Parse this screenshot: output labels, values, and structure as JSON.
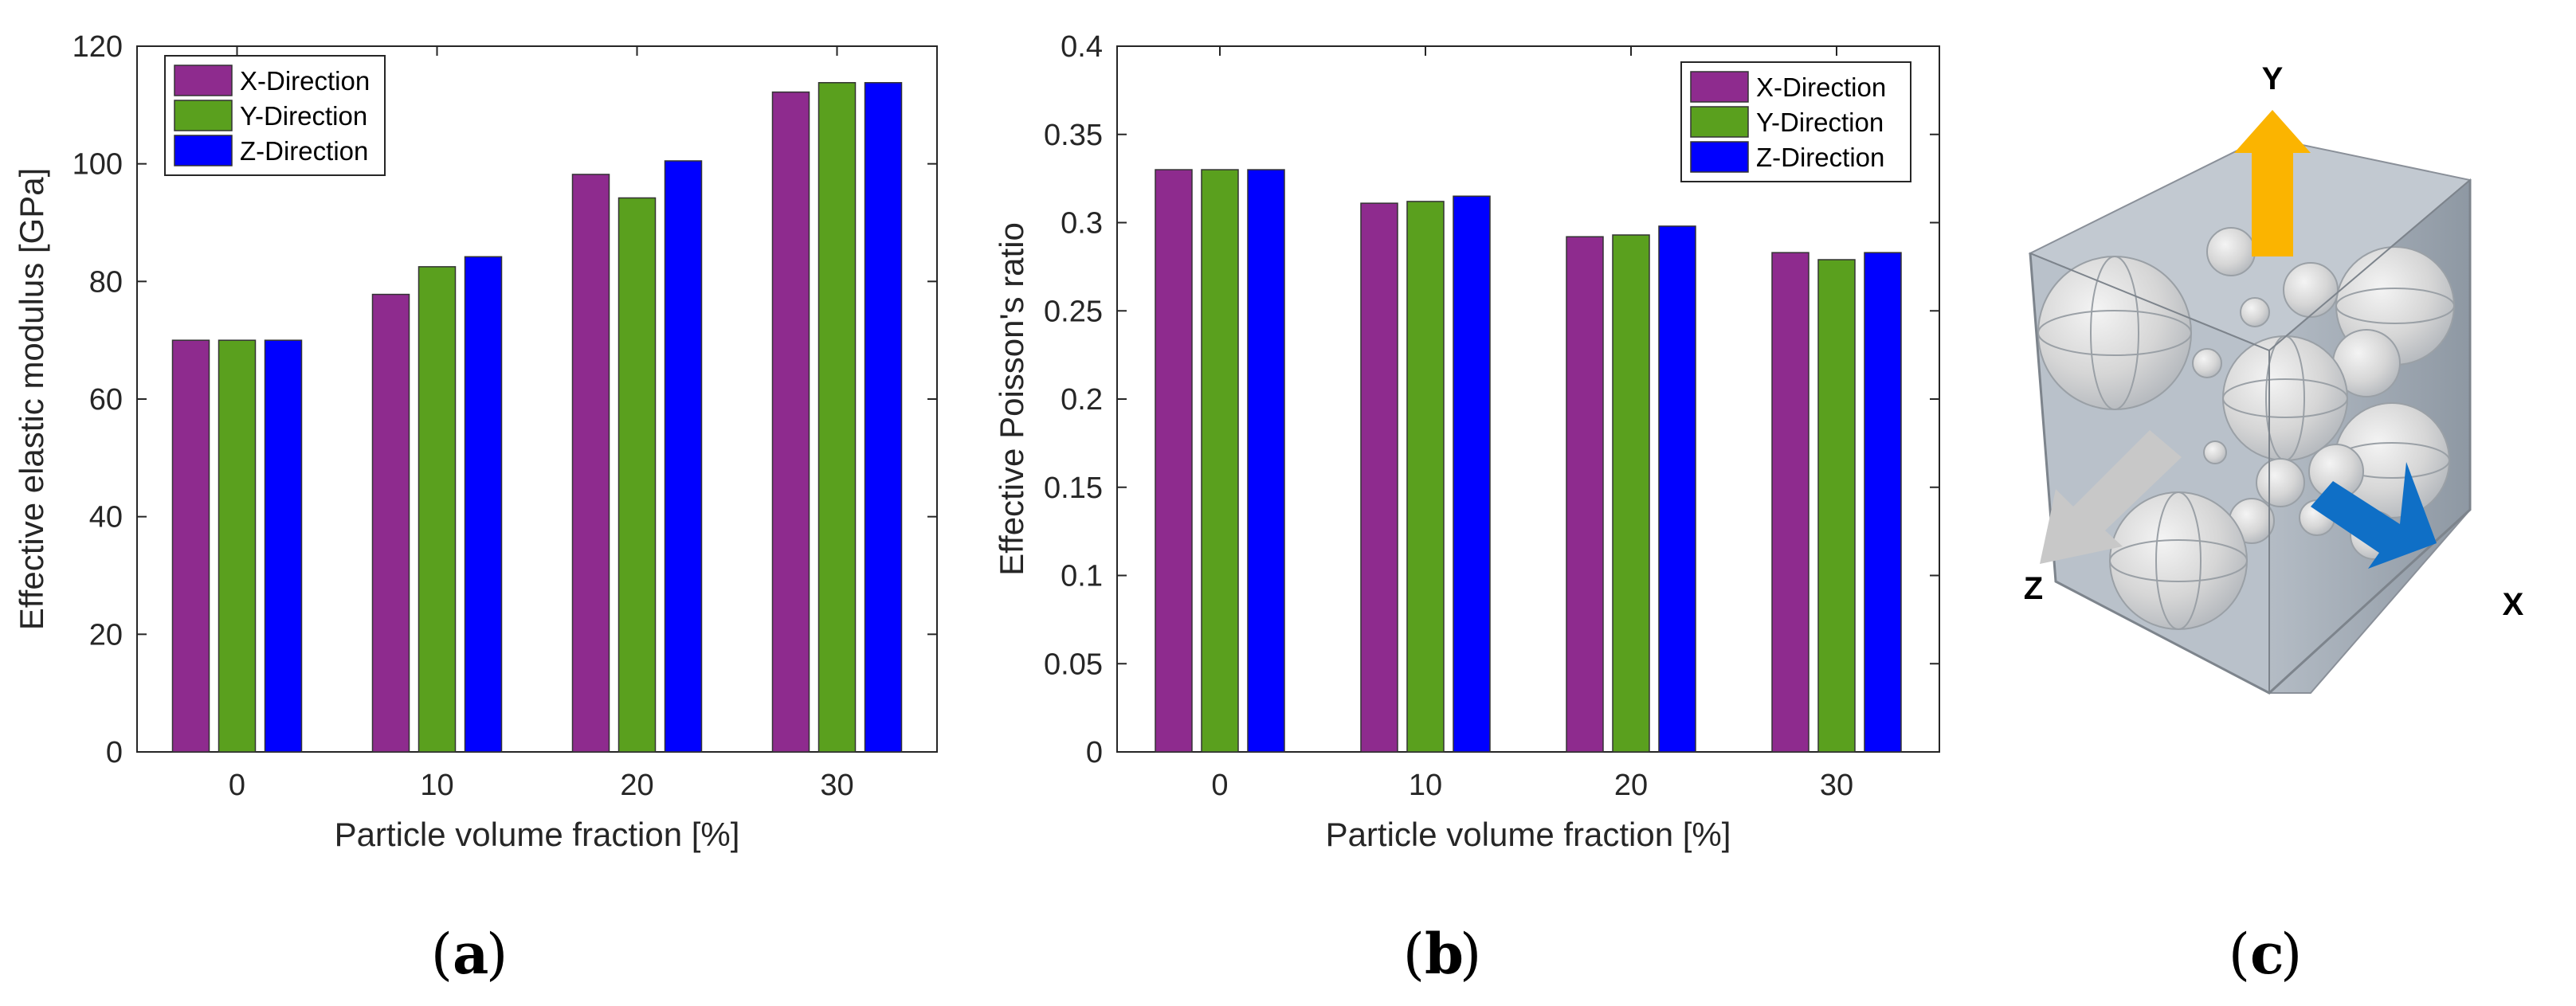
{
  "chart_data": [
    {
      "type": "bar",
      "panel": "a",
      "categories": [
        "0",
        "10",
        "20",
        "30"
      ],
      "series": [
        {
          "name": "X-Direction",
          "color": "#8e2b8e",
          "values": [
            70,
            77.8,
            98.2,
            112.2
          ]
        },
        {
          "name": "Y-Direction",
          "color": "#5aa01e",
          "values": [
            70,
            82.5,
            94.2,
            113.8
          ]
        },
        {
          "name": "Z-Direction",
          "color": "#0000ff",
          "values": [
            70,
            84.2,
            100.5,
            113.8
          ]
        }
      ],
      "xlabel": "Particle volume fraction [%]",
      "ylabel": "Effective elastic modulus [GPa]",
      "ylim": [
        0,
        120
      ],
      "yticks": [
        "0",
        "20",
        "40",
        "60",
        "80",
        "100",
        "120"
      ],
      "legend": "top-left"
    },
    {
      "type": "bar",
      "panel": "b",
      "categories": [
        "0",
        "10",
        "20",
        "30"
      ],
      "series": [
        {
          "name": "X-Direction",
          "color": "#8e2b8e",
          "values": [
            0.33,
            0.311,
            0.292,
            0.283
          ]
        },
        {
          "name": "Y-Direction",
          "color": "#5aa01e",
          "values": [
            0.33,
            0.312,
            0.293,
            0.279
          ]
        },
        {
          "name": "Z-Direction",
          "color": "#0000ff",
          "values": [
            0.33,
            0.315,
            0.298,
            0.283
          ]
        }
      ],
      "xlabel": "Particle volume fraction [%]",
      "ylabel": "Effective Poisson's ratio",
      "ylim": [
        0,
        0.4
      ],
      "yticks": [
        "0",
        "0.05",
        "0.1",
        "0.15",
        "0.2",
        "0.25",
        "0.3",
        "0.35",
        "0.4"
      ],
      "legend": "top-right"
    }
  ],
  "panel_labels": {
    "a": "a",
    "b": "b",
    "c": "c"
  },
  "cube": {
    "axes": [
      {
        "label": "Y",
        "color": "#fbb400"
      },
      {
        "label": "X",
        "color": "#0f6fc6"
      },
      {
        "label": "Z",
        "color": "#c8c8c8"
      }
    ]
  }
}
